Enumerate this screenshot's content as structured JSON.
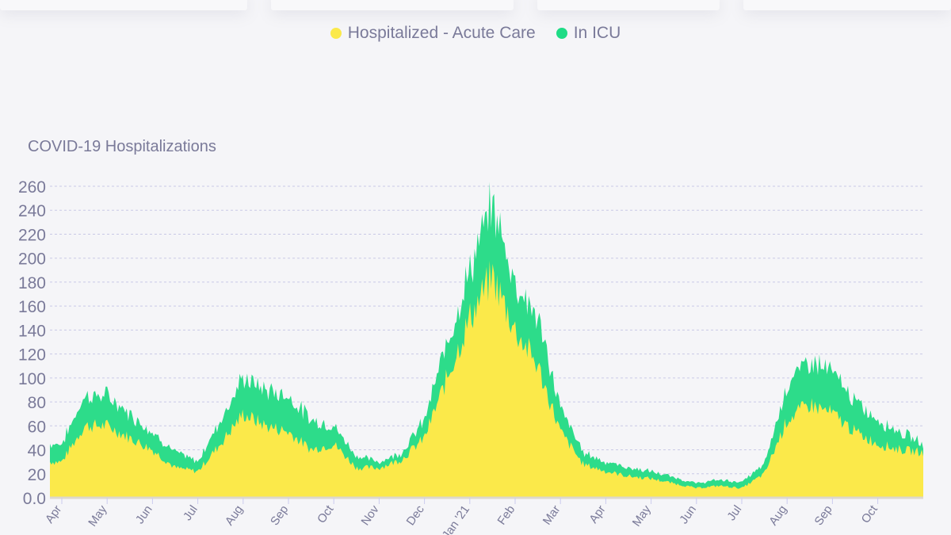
{
  "legend": [
    {
      "label": "Hospitalized - Acute Care",
      "color": "#fbe94a"
    },
    {
      "label": "In ICU",
      "color": "#1fdc86"
    }
  ],
  "chart_data": {
    "type": "area",
    "stacked": true,
    "title": "COVID-19 Hospitalizations",
    "xlabel": "",
    "ylabel": "",
    "ylim": [
      0,
      260
    ],
    "yticks": [
      "0.0",
      "20",
      "40",
      "60",
      "80",
      "100",
      "120",
      "140",
      "160",
      "180",
      "200",
      "220",
      "240",
      "260"
    ],
    "grid": "horizontal dashed",
    "legend_position": "top-center",
    "xtick_labels": [
      "Apr",
      "May",
      "Jun",
      "Jul",
      "Aug",
      "Sep",
      "Oct",
      "Nov",
      "Dec",
      "Jan '21",
      "Feb",
      "Mar",
      "Apr",
      "May",
      "Jun",
      "Jul",
      "Aug",
      "Sep",
      "Oct"
    ],
    "x_months_from_apr_2020": [
      0,
      0.5,
      1,
      1.5,
      2,
      2.5,
      3,
      3.5,
      4,
      4.5,
      5,
      5.5,
      6,
      6.5,
      7,
      7.5,
      8,
      8.5,
      9,
      9.5,
      10,
      10.5,
      11,
      11.5,
      12,
      12.5,
      13,
      13.5,
      14,
      14.5,
      15,
      15.5,
      16,
      16.5,
      17,
      17.5,
      18,
      18.5,
      19
    ],
    "series": [
      {
        "name": "Hospitalized - Acute Care",
        "values": [
          30,
          60,
          60,
          50,
          40,
          25,
          22,
          45,
          70,
          60,
          55,
          40,
          45,
          25,
          25,
          32,
          50,
          100,
          150,
          185,
          140,
          110,
          55,
          28,
          22,
          18,
          16,
          12,
          8,
          10,
          8,
          20,
          65,
          78,
          70,
          55,
          45,
          40,
          38
        ]
      },
      {
        "name": "In ICU",
        "values": [
          15,
          25,
          25,
          20,
          15,
          13,
          8,
          20,
          30,
          30,
          30,
          25,
          15,
          10,
          5,
          6,
          15,
          30,
          40,
          60,
          40,
          40,
          20,
          10,
          8,
          7,
          6,
          5,
          4,
          5,
          5,
          8,
          30,
          37,
          35,
          25,
          20,
          15,
          7
        ]
      }
    ]
  }
}
